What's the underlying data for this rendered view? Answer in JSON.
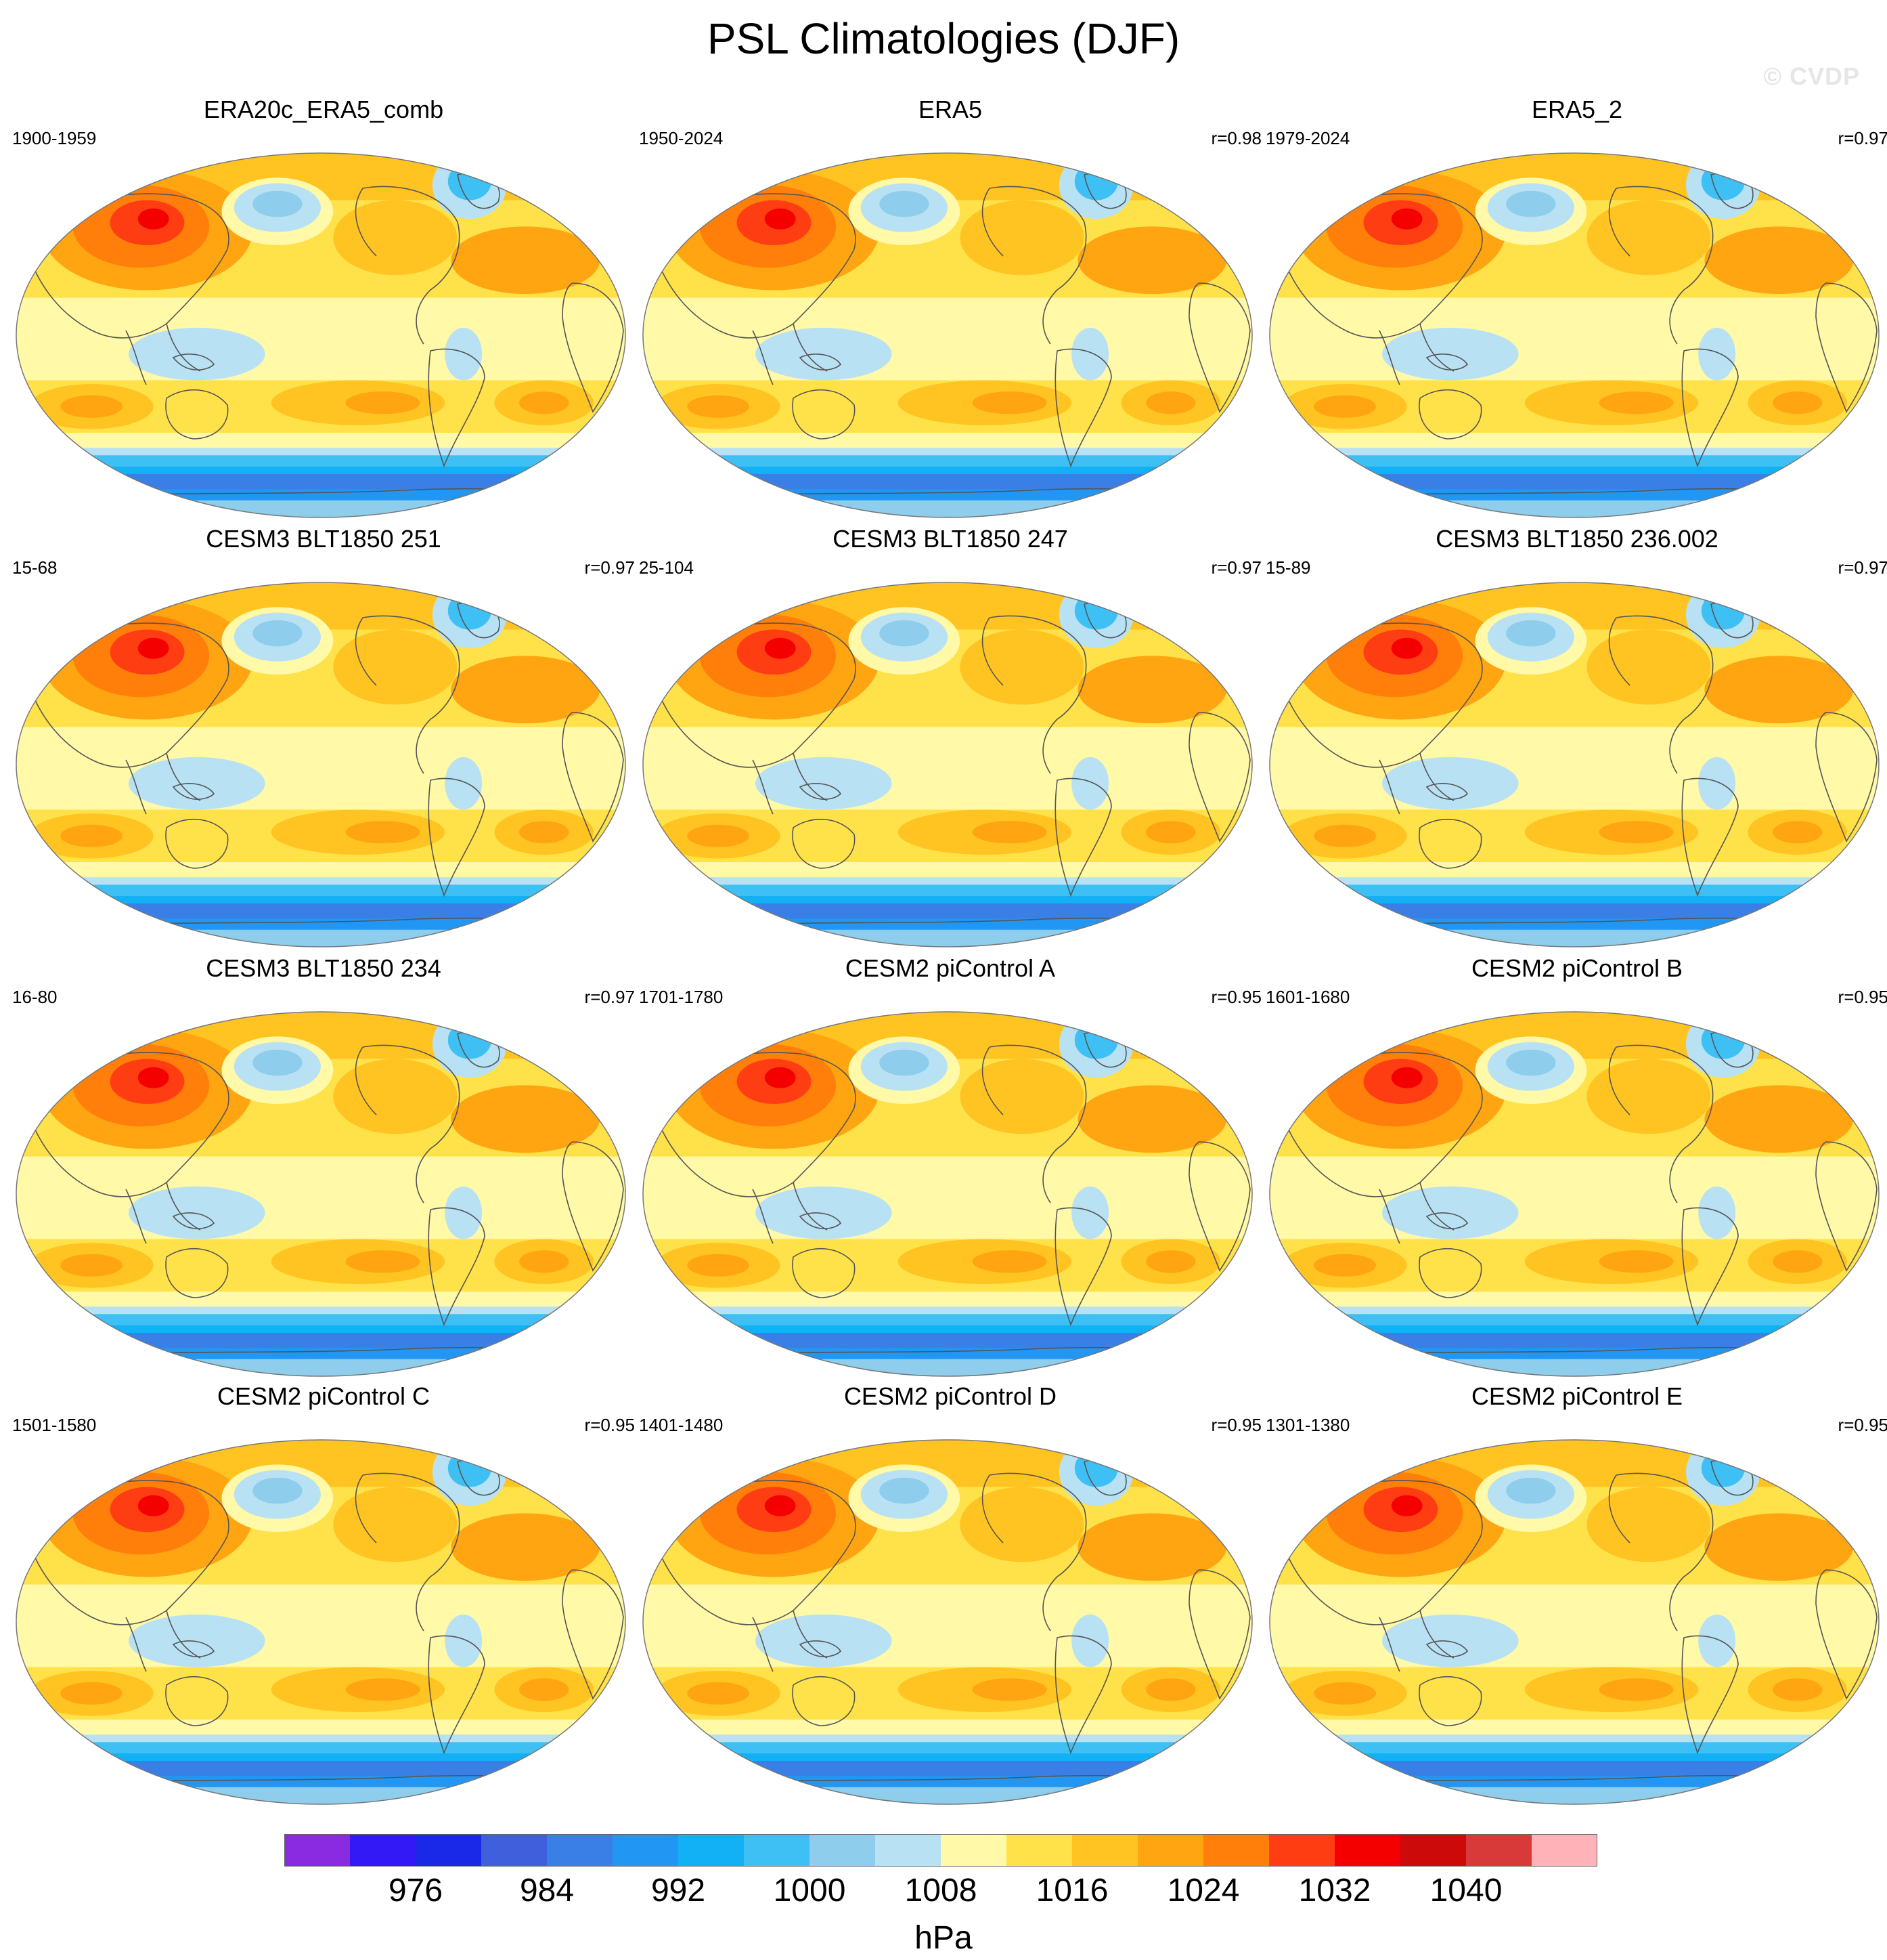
{
  "title": "PSL Climatologies (DJF)",
  "watermark": "© CVDP",
  "panels": [
    {
      "title": "ERA20c_ERA5_comb",
      "period": "1900-1959",
      "corr": ""
    },
    {
      "title": "ERA5",
      "period": "1950-2024",
      "corr": "r=0.98"
    },
    {
      "title": "ERA5_2",
      "period": "1979-2024",
      "corr": "r=0.97"
    },
    {
      "title": "CESM3 BLT1850 251",
      "period": "15-68",
      "corr": "r=0.97"
    },
    {
      "title": "CESM3 BLT1850 247",
      "period": "25-104",
      "corr": "r=0.97"
    },
    {
      "title": "CESM3 BLT1850 236.002",
      "period": "15-89",
      "corr": "r=0.97"
    },
    {
      "title": "CESM3 BLT1850 234",
      "period": "16-80",
      "corr": "r=0.97"
    },
    {
      "title": "CESM2 piControl A",
      "period": "1701-1780",
      "corr": "r=0.95"
    },
    {
      "title": "CESM2 piControl B",
      "period": "1601-1680",
      "corr": "r=0.95"
    },
    {
      "title": "CESM2 piControl C",
      "period": "1501-1580",
      "corr": "r=0.95"
    },
    {
      "title": "CESM2 piControl D",
      "period": "1401-1480",
      "corr": "r=0.95"
    },
    {
      "title": "CESM2 piControl E",
      "period": "1301-1380",
      "corr": "r=0.95"
    }
  ],
  "colorbar": {
    "unit": "hPa",
    "labels": [
      "976",
      "984",
      "992",
      "1000",
      "1008",
      "1016",
      "1024",
      "1032",
      "1040"
    ],
    "colors": [
      "#8a2be2",
      "#3319f5",
      "#1a28e8",
      "#3f5fdc",
      "#3a7fe6",
      "#2196f3",
      "#12b1f5",
      "#3fc0f5",
      "#8ecdec",
      "#b9e1f4",
      "#fff9a8",
      "#ffe24a",
      "#ffc421",
      "#ffa512",
      "#ff7f0a",
      "#ff3d12",
      "#f50000",
      "#cc0a0a",
      "#d83a3a",
      "#ffb3b8"
    ]
  }
}
